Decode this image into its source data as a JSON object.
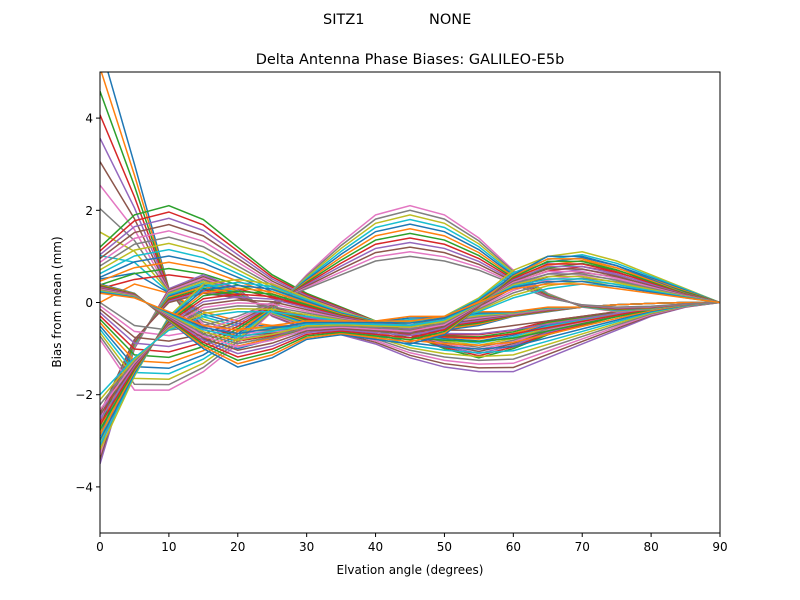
{
  "figure": {
    "suptitle_station": "SITZ1",
    "suptitle_radome": "NONE"
  },
  "chart_data": {
    "type": "line",
    "title": "Delta Antenna Phase Biases: GALILEO-E5b",
    "xlabel": "Elvation angle (degrees)",
    "ylabel": "Bias from mean (mm)",
    "xlim": [
      0,
      90
    ],
    "ylim": [
      -5,
      5
    ],
    "xticks": [
      0,
      10,
      20,
      30,
      40,
      50,
      60,
      70,
      80,
      90
    ],
    "yticks": [
      -4,
      -2,
      0,
      2,
      4
    ],
    "xtick_labels": [
      "0",
      "10",
      "20",
      "30",
      "40",
      "50",
      "60",
      "70",
      "80",
      "90"
    ],
    "ytick_labels": [
      "−4",
      "−2",
      "0",
      "2",
      "4"
    ],
    "grid": false,
    "x": [
      0,
      5,
      10,
      15,
      20,
      25,
      30,
      35,
      40,
      45,
      50,
      55,
      60,
      65,
      70,
      75,
      80,
      85,
      90
    ],
    "palette": [
      "#1f77b4",
      "#ff7f0e",
      "#2ca02c",
      "#d62728",
      "#9467bd",
      "#8c564b",
      "#e377c2",
      "#7f7f7f",
      "#bcbd22",
      "#17becf"
    ],
    "series_count": 72,
    "families": [
      {
        "count": 12,
        "ys": [
          [
            5.6,
            3.0,
            0.3,
            -0.8,
            -1.0,
            -0.8,
            -0.6,
            -0.5,
            -0.6,
            -0.7,
            -0.6,
            -0.5,
            -0.3,
            -0.2,
            -0.1,
            -0.05,
            -0.02,
            0.0,
            0.0
          ],
          [
            0.0,
            0.4,
            0.2,
            -0.2,
            -0.4,
            -0.5,
            -0.5,
            -0.4,
            -0.4,
            -0.3,
            -0.3,
            -0.2,
            -0.2,
            -0.1,
            -0.1,
            -0.05,
            -0.02,
            0.0,
            0.0
          ]
        ]
      },
      {
        "count": 12,
        "ys": [
          [
            1.2,
            1.9,
            2.1,
            1.8,
            1.2,
            0.6,
            0.2,
            -0.1,
            -0.4,
            -0.7,
            -1.0,
            -1.2,
            -1.0,
            -0.7,
            -0.5,
            -0.3,
            -0.15,
            -0.05,
            0.0
          ],
          [
            0.3,
            0.5,
            0.6,
            0.5,
            0.3,
            0.1,
            -0.1,
            -0.3,
            -0.5,
            -0.6,
            -0.7,
            -0.7,
            -0.6,
            -0.4,
            -0.3,
            -0.2,
            -0.1,
            -0.03,
            0.0
          ]
        ]
      },
      {
        "count": 12,
        "ys": [
          [
            -3.5,
            -1.0,
            0.3,
            0.6,
            0.3,
            -0.3,
            -0.6,
            -0.7,
            -0.9,
            -1.2,
            -1.4,
            -1.5,
            -1.5,
            -1.2,
            -0.9,
            -0.6,
            -0.3,
            -0.1,
            0.0
          ],
          [
            -2.4,
            -0.8,
            0.0,
            0.2,
            0.1,
            -0.1,
            -0.3,
            -0.4,
            -0.5,
            -0.6,
            -0.6,
            -0.6,
            -0.5,
            -0.4,
            -0.3,
            -0.2,
            -0.1,
            -0.03,
            0.0
          ]
        ]
      },
      {
        "count": 12,
        "ys": [
          [
            -0.8,
            -1.9,
            -1.9,
            -1.5,
            -0.9,
            -0.2,
            0.6,
            1.3,
            1.9,
            2.1,
            1.9,
            1.4,
            0.7,
            0.2,
            -0.1,
            -0.2,
            -0.15,
            -0.05,
            0.0
          ],
          [
            0.0,
            -0.5,
            -0.6,
            -0.5,
            -0.3,
            0.0,
            0.3,
            0.6,
            0.9,
            1.0,
            0.9,
            0.7,
            0.4,
            0.1,
            -0.05,
            -0.1,
            -0.08,
            -0.03,
            0.0
          ]
        ]
      },
      {
        "count": 12,
        "ys": [
          [
            -3.2,
            -1.6,
            -0.3,
            0.4,
            0.5,
            0.4,
            0.1,
            -0.2,
            -0.4,
            -0.5,
            -0.3,
            0.1,
            0.7,
            1.0,
            1.1,
            0.9,
            0.6,
            0.3,
            0.0
          ],
          [
            -2.0,
            -1.2,
            -0.6,
            -0.3,
            -0.2,
            -0.2,
            -0.3,
            -0.4,
            -0.5,
            -0.5,
            -0.4,
            -0.2,
            0.1,
            0.3,
            0.4,
            0.35,
            0.25,
            0.1,
            0.0
          ]
        ]
      },
      {
        "count": 12,
        "ys": [
          [
            0.4,
            0.2,
            -0.4,
            -1.0,
            -1.4,
            -1.2,
            -0.8,
            -0.7,
            -0.8,
            -0.9,
            -0.7,
            -0.1,
            0.6,
            1.0,
            1.0,
            0.8,
            0.5,
            0.2,
            0.0
          ],
          [
            0.2,
            0.1,
            -0.2,
            -0.5,
            -0.6,
            -0.5,
            -0.4,
            -0.4,
            -0.4,
            -0.4,
            -0.3,
            0.0,
            0.3,
            0.4,
            0.4,
            0.3,
            0.2,
            0.1,
            0.0
          ]
        ]
      }
    ]
  }
}
